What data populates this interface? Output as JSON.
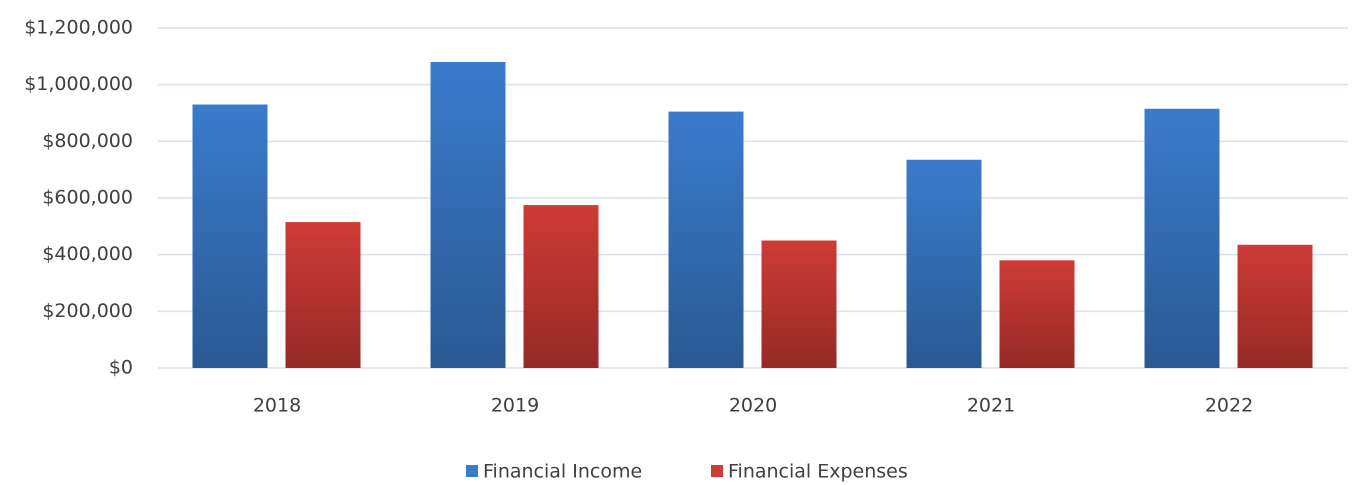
{
  "chart_data": {
    "type": "bar",
    "categories": [
      "2018",
      "2019",
      "2020",
      "2021",
      "2022"
    ],
    "series": [
      {
        "name": "Financial Income",
        "color": "#3b7bcc",
        "values": [
          930000,
          1080000,
          905000,
          735000,
          915000
        ]
      },
      {
        "name": "Financial Expenses",
        "color": "#cf3b36",
        "values": [
          515000,
          575000,
          450000,
          380000,
          435000
        ]
      }
    ],
    "ylim": [
      0,
      1200000
    ],
    "yticks": [
      {
        "value": 0,
        "label": "$0"
      },
      {
        "value": 200000,
        "label": "$200,000"
      },
      {
        "value": 400000,
        "label": "$400,000"
      },
      {
        "value": 600000,
        "label": "$600,000"
      },
      {
        "value": 800000,
        "label": "$800,000"
      },
      {
        "value": 1000000,
        "label": "$1,000,000"
      },
      {
        "value": 1200000,
        "label": "$1,200,000"
      }
    ],
    "grid": true,
    "legend": "bottom"
  }
}
